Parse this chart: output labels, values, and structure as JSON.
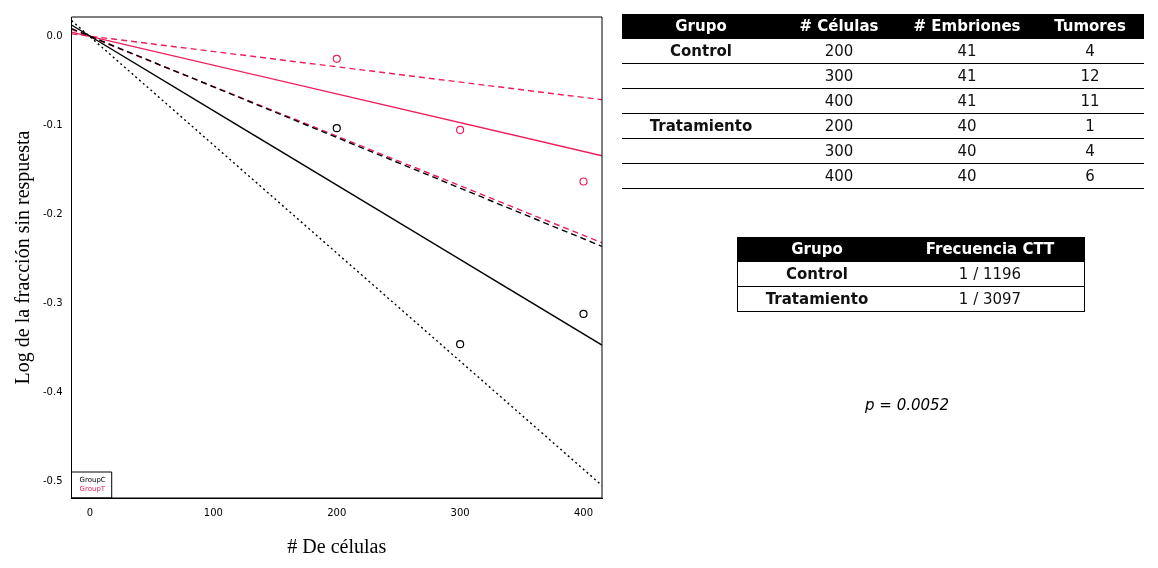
{
  "chart_data": [
    {
      "type": "line",
      "xlabel": "# De células",
      "ylabel": "Log de la fracción sin respuesta",
      "xlim": [
        -15,
        415
      ],
      "xticks": [
        0,
        100,
        200,
        300,
        400
      ],
      "ylim": [
        -0.519,
        0.022
      ],
      "yticks": [
        {
          "value": 0,
          "label": "0.0"
        },
        -0.1,
        -0.2,
        -0.3,
        -0.4,
        -0.5
      ],
      "grid": false,
      "legend": "bottom left",
      "series": [
        {
          "name": "GroupC",
          "type": "scatter",
          "marker": "circle",
          "color": "#000000",
          "x": [
            200,
            300,
            400
          ],
          "values": [
            -0.103,
            -0.346,
            -0.312
          ]
        },
        {
          "name": "GroupT",
          "type": "scatter",
          "marker": "circle",
          "color": "#ee1e5a",
          "x": [
            200,
            300,
            400
          ],
          "values": [
            -0.025,
            -0.105,
            -0.163
          ]
        },
        {
          "type": "line",
          "marker": "none",
          "line_style": "solid",
          "color": "#000000",
          "x": [
            -15,
            415
          ],
          "values": [
            0.013,
            -0.347
          ]
        },
        {
          "type": "line",
          "marker": "none",
          "line_style": "dashed",
          "color": "#000000",
          "x": [
            -15,
            415
          ],
          "values": [
            0.009,
            -0.236
          ]
        },
        {
          "type": "line",
          "marker": "none",
          "line_style": "dotted",
          "color": "#000000",
          "x": [
            -15,
            415
          ],
          "values": [
            0.018,
            -0.505
          ]
        },
        {
          "type": "line",
          "marker": "none",
          "line_style": "solid",
          "color": "#ee1e5a",
          "x": [
            -15,
            415
          ],
          "values": [
            0.005,
            -0.134
          ]
        },
        {
          "type": "line",
          "marker": "none",
          "line_style": "dashed",
          "color": "#ee1e5a",
          "x": [
            -15,
            415
          ],
          "values": [
            0.003,
            -0.071
          ]
        },
        {
          "type": "line",
          "marker": "none",
          "line_style": "dashed",
          "color": "#ee1e5a",
          "x": [
            -15,
            415
          ],
          "values": [
            0.008,
            -0.232
          ]
        }
      ]
    },
    {
      "type": "other",
      "annotations": [
        "Grupo",
        "# Células",
        "# Embriones",
        "Tumores",
        "Control",
        "200",
        "41",
        "4",
        "300",
        "41",
        "12",
        "400",
        "41",
        "11",
        "Tratamiento",
        "200",
        "40",
        "1",
        "300",
        "40",
        "4",
        "400",
        "40",
        "6",
        "Grupo",
        "Frecuencia CTT",
        "Control",
        "1 / 1196",
        "Tratamiento",
        "1 / 3097",
        "p = 0.0052"
      ]
    }
  ]
}
